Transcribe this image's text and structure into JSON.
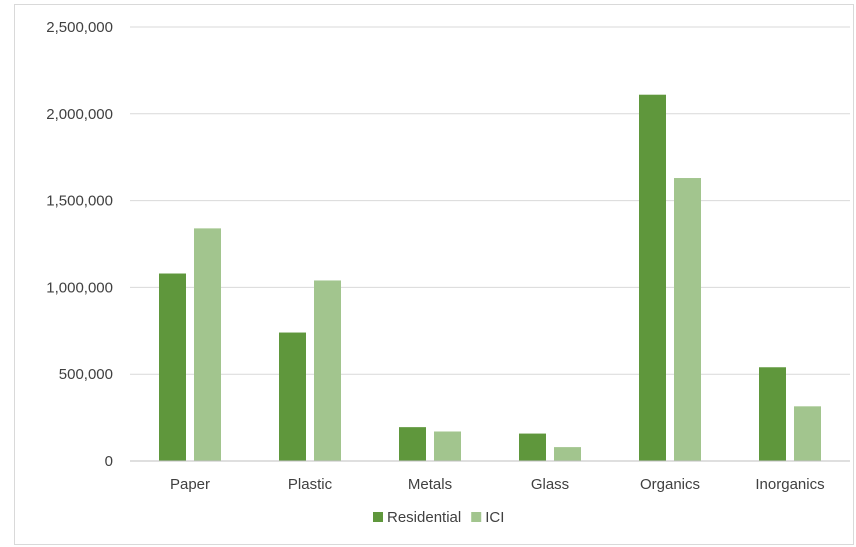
{
  "chart_data": {
    "type": "bar",
    "categories": [
      "Paper",
      "Plastic",
      "Metals",
      "Glass",
      "Organics",
      "Inorganics"
    ],
    "series": [
      {
        "name": "Residential",
        "color": "#5f973c",
        "values": [
          1080000,
          740000,
          195000,
          158000,
          2110000,
          540000
        ]
      },
      {
        "name": "ICI",
        "color": "#a2c58e",
        "values": [
          1340000,
          1040000,
          170000,
          80000,
          1630000,
          315000
        ]
      }
    ],
    "yticks": [
      "0",
      "500,000",
      "1,000,000",
      "1,500,000",
      "2,000,000",
      "2,500,000"
    ],
    "ylim": [
      0,
      2500000
    ],
    "grid": true,
    "legend_position": "bottom",
    "axis_color": "#bfbfbf",
    "grid_color": "#d9d9d9"
  }
}
